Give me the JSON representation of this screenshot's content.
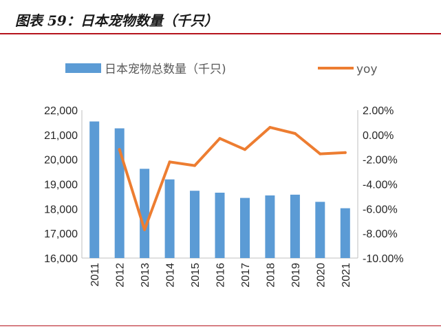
{
  "figure": {
    "title": "图表 59：日本宠物数量（千只）"
  },
  "chart_data": {
    "type": "bar+line",
    "title": "日本宠物数量（千只）",
    "categories": [
      "2011",
      "2012",
      "2013",
      "2014",
      "2015",
      "2016",
      "2017",
      "2018",
      "2019",
      "2020",
      "2021"
    ],
    "series": [
      {
        "name": "日本宠物总数量（千只)",
        "type": "bar",
        "axis": "left",
        "color": "#5b9bd5",
        "values": [
          21540,
          21260,
          19620,
          19190,
          18730,
          18650,
          18440,
          18540,
          18570,
          18280,
          18020
        ]
      },
      {
        "name": "yoy",
        "type": "line",
        "axis": "right",
        "color": "#ed7d31",
        "values": [
          null,
          -1.2,
          -7.7,
          -2.2,
          -2.5,
          -0.3,
          -1.2,
          0.6,
          0.1,
          -1.55,
          -1.45
        ]
      }
    ],
    "left_axis": {
      "min": 16000,
      "max": 22000,
      "step": 1000,
      "tick_labels": [
        "16,000",
        "17,000",
        "18,000",
        "19,000",
        "20,000",
        "21,000",
        "22,000"
      ]
    },
    "right_axis": {
      "min": -10,
      "max": 2,
      "step": 2,
      "tick_labels": [
        "-10.00%",
        "-8.00%",
        "-6.00%",
        "-4.00%",
        "-2.00%",
        "0.00%",
        "2.00%"
      ]
    },
    "legend": {
      "position": "top",
      "bar_label": "日本宠物总数量（千只)",
      "line_label": "yoy"
    }
  }
}
